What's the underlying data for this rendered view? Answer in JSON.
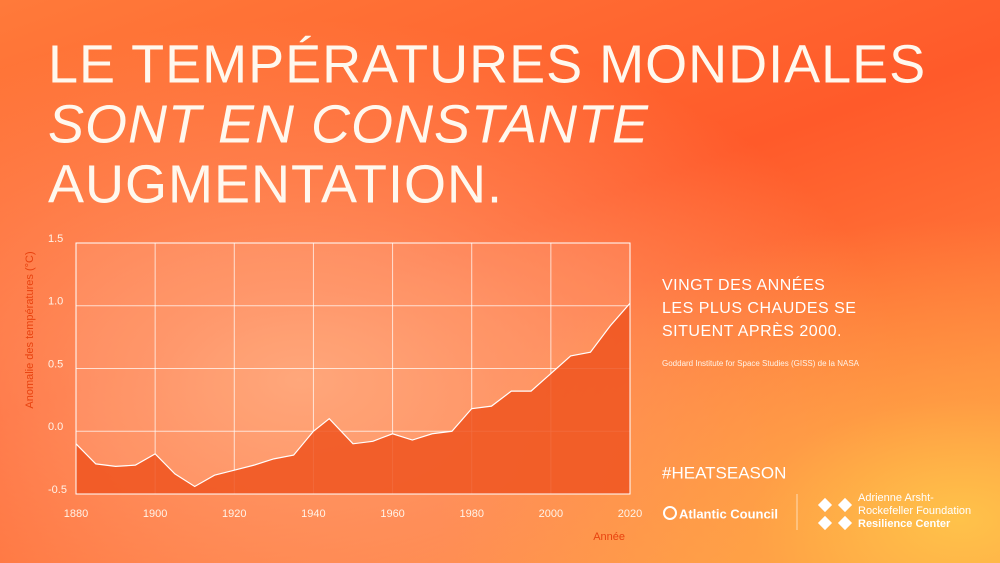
{
  "chart_data": {
    "type": "area",
    "title": [
      "LE TEMPÉRATURES MONDIALES",
      "SONT EN CONSTANTE",
      "AUGMENTATION."
    ],
    "x_label": "Année",
    "y_label": "Anomalie des températures (°C)",
    "x": [
      1880,
      1885,
      1890,
      1895,
      1900,
      1905,
      1910,
      1915,
      1920,
      1925,
      1930,
      1935,
      1940,
      1944,
      1950,
      1955,
      1960,
      1965,
      1970,
      1975,
      1980,
      1985,
      1990,
      1995,
      2000,
      2005,
      2010,
      2015,
      2020
    ],
    "series": [
      {
        "name": "Anomalie des températures",
        "color": "#f0531f",
        "values": [
          -0.1,
          -0.26,
          -0.28,
          -0.27,
          -0.18,
          -0.34,
          -0.44,
          -0.35,
          -0.31,
          -0.27,
          -0.22,
          -0.19,
          0.0,
          0.1,
          -0.1,
          -0.08,
          -0.02,
          -0.07,
          -0.02,
          0.0,
          0.18,
          0.2,
          0.32,
          0.32,
          0.46,
          0.6,
          0.63,
          0.84,
          1.02
        ]
      }
    ],
    "xlim": [
      1880,
      2020
    ],
    "xticks": [
      1880,
      1900,
      1920,
      1940,
      1960,
      1980,
      2000,
      2020
    ],
    "ylim": [
      -0.5,
      1.5
    ],
    "yticks": [
      -0.5,
      {
        "value": 0,
        "label": "0.0"
      },
      0.5,
      {
        "value": 1,
        "label": "1.0"
      },
      1.5
    ],
    "grid": true
  },
  "sidebar": {
    "headline": [
      "VINGT DES ANNÉES",
      "LES PLUS CHAUDES SE",
      "SITUENT APRÈS 2000."
    ],
    "source": "Goddard Institute for Space Studies (GISS) de la NASA",
    "hashtag": "#HEATSEASON",
    "logos": [
      "Atlantic Council",
      "Adrienne Arsht-",
      "Rockefeller Foundation",
      "Resilience Center"
    ]
  }
}
